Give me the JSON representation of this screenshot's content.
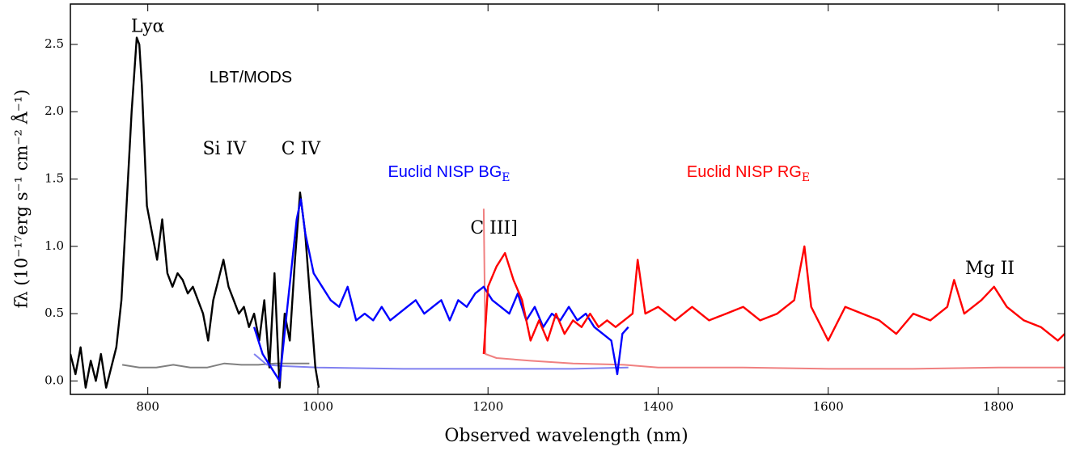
{
  "chart_data": {
    "type": "line",
    "xlabel": "Observed wavelength (nm)",
    "ylabel": "fλ (10⁻¹⁷erg s⁻¹ cm⁻² Å⁻¹)",
    "xlim": [
      709,
      1878
    ],
    "ylim": [
      -0.1,
      2.8
    ],
    "xticks": [
      800,
      1000,
      1200,
      1400,
      1600,
      1800
    ],
    "yticks": [
      {
        "value": 0,
        "label": "0.0"
      },
      0.5,
      {
        "value": 1,
        "label": "1.0"
      },
      1.5,
      {
        "value": 2,
        "label": "2.0"
      },
      2.5
    ],
    "series": [
      {
        "name": "LBT/MODS",
        "color": "#000000",
        "x": [
          709,
          715,
          721,
          727,
          733,
          739,
          745,
          751,
          757,
          763,
          769,
          775,
          781,
          787,
          790,
          793,
          799,
          805,
          811,
          817,
          823,
          829,
          835,
          841,
          847,
          853,
          859,
          865,
          871,
          877,
          883,
          889,
          895,
          901,
          907,
          913,
          919,
          925,
          931,
          937,
          943,
          949,
          955,
          961,
          967,
          973,
          979,
          985,
          991,
          997,
          1001
        ],
        "values": [
          0.2,
          0.05,
          0.25,
          -0.05,
          0.15,
          0,
          0.2,
          -0.05,
          0.1,
          0.25,
          0.6,
          1.3,
          2,
          2.55,
          2.5,
          2.2,
          1.3,
          1.1,
          0.9,
          1.2,
          0.8,
          0.7,
          0.8,
          0.75,
          0.65,
          0.7,
          0.6,
          0.5,
          0.3,
          0.6,
          0.75,
          0.9,
          0.7,
          0.6,
          0.5,
          0.55,
          0.4,
          0.5,
          0.3,
          0.6,
          0.1,
          0.8,
          -0.05,
          0.5,
          0.3,
          0.9,
          1.4,
          1.1,
          0.6,
          0.1,
          -0.05
        ]
      },
      {
        "color": "#808080",
        "x": [
          770,
          790,
          810,
          830,
          850,
          870,
          890,
          910,
          930,
          950,
          970,
          990
        ],
        "values": [
          0.12,
          0.1,
          0.1,
          0.12,
          0.1,
          0.1,
          0.13,
          0.12,
          0.12,
          0.13,
          0.13,
          0.13
        ]
      },
      {
        "color": "#8080f0",
        "x": [
          925,
          940,
          960,
          1000,
          1100,
          1200,
          1300,
          1365
        ],
        "values": [
          0.2,
          0.12,
          0.11,
          0.1,
          0.09,
          0.09,
          0.09,
          0.1
        ]
      },
      {
        "name": "Euclid NISP BG",
        "name_subscript": "E",
        "color": "#0000ff",
        "x": [
          925,
          935,
          945,
          955,
          965,
          975,
          980,
          985,
          995,
          1005,
          1015,
          1025,
          1035,
          1045,
          1055,
          1065,
          1075,
          1085,
          1095,
          1105,
          1115,
          1125,
          1135,
          1145,
          1155,
          1165,
          1175,
          1185,
          1195,
          1205,
          1215,
          1225,
          1235,
          1245,
          1255,
          1265,
          1275,
          1285,
          1295,
          1305,
          1315,
          1325,
          1335,
          1345,
          1352,
          1358,
          1365
        ],
        "values": [
          0.4,
          0.2,
          0.1,
          0,
          0.6,
          1.2,
          1.35,
          1.1,
          0.8,
          0.7,
          0.6,
          0.55,
          0.7,
          0.45,
          0.5,
          0.45,
          0.55,
          0.45,
          0.5,
          0.55,
          0.6,
          0.5,
          0.55,
          0.6,
          0.45,
          0.6,
          0.55,
          0.65,
          0.7,
          0.6,
          0.55,
          0.5,
          0.65,
          0.45,
          0.55,
          0.4,
          0.5,
          0.45,
          0.55,
          0.45,
          0.5,
          0.4,
          0.35,
          0.3,
          0.05,
          0.35,
          0.4
        ]
      },
      {
        "color": "#f08080",
        "x": [
          1195,
          1197,
          1210,
          1250,
          1300,
          1360,
          1400,
          1500,
          1600,
          1700,
          1800,
          1878
        ],
        "values": [
          1.28,
          0.2,
          0.17,
          0.15,
          0.13,
          0.12,
          0.1,
          0.1,
          0.09,
          0.09,
          0.1,
          0.1
        ]
      },
      {
        "name": "Euclid NISP RG",
        "name_subscript": "E",
        "color": "#ff0000",
        "x": [
          1195,
          1200,
          1210,
          1220,
          1230,
          1240,
          1250,
          1260,
          1270,
          1280,
          1290,
          1300,
          1310,
          1320,
          1330,
          1340,
          1350,
          1360,
          1370,
          1376,
          1385,
          1400,
          1420,
          1440,
          1460,
          1480,
          1500,
          1520,
          1540,
          1560,
          1572,
          1580,
          1600,
          1620,
          1640,
          1660,
          1680,
          1700,
          1720,
          1740,
          1748,
          1760,
          1780,
          1795,
          1810,
          1830,
          1850,
          1870,
          1878
        ],
        "values": [
          0.2,
          0.7,
          0.85,
          0.95,
          0.75,
          0.6,
          0.3,
          0.45,
          0.3,
          0.5,
          0.35,
          0.45,
          0.4,
          0.5,
          0.4,
          0.45,
          0.4,
          0.45,
          0.5,
          0.9,
          0.5,
          0.55,
          0.45,
          0.55,
          0.45,
          0.5,
          0.55,
          0.45,
          0.5,
          0.6,
          1,
          0.55,
          0.3,
          0.55,
          0.5,
          0.45,
          0.35,
          0.5,
          0.45,
          0.55,
          0.75,
          0.5,
          0.6,
          0.7,
          0.55,
          0.45,
          0.4,
          0.3,
          0.35
        ]
      }
    ],
    "annotations": [
      {
        "text": "Lyα",
        "x": 800,
        "y": 2.63
      },
      {
        "text": "Si IV",
        "x": 890,
        "y": 1.72
      },
      {
        "text": "C IV",
        "x": 980,
        "y": 1.72
      },
      {
        "text": "C III]",
        "x": 1207,
        "y": 1.13
      },
      {
        "text": "Mg II",
        "x": 1790,
        "y": 0.83
      }
    ]
  }
}
